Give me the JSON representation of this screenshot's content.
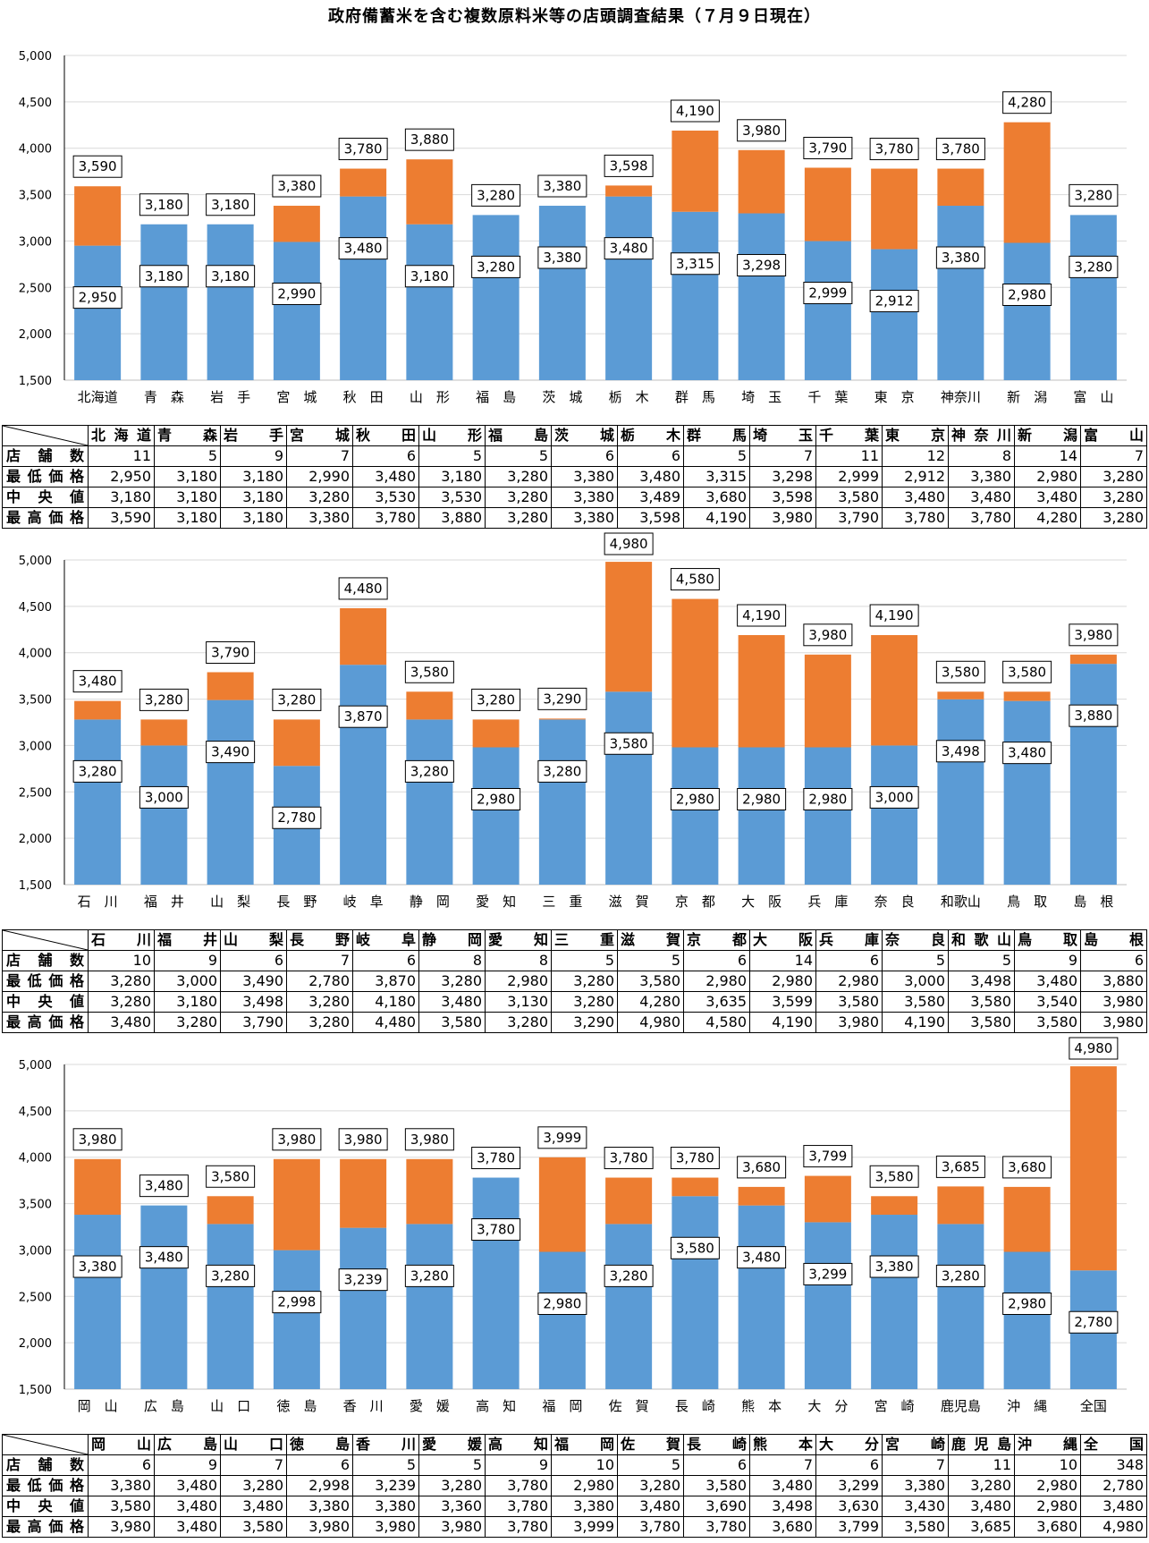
{
  "title": "政府備蓄米を含む複数原料米等の店頭調査結果（７月９日現在）",
  "colors": {
    "low": "#5b9bd5",
    "high": "#ed7d31",
    "grid": "#d9d9d9"
  },
  "table_row_labels": [
    "店舗数",
    "最低価格",
    "中央値",
    "最高価格"
  ],
  "chart_data": [
    {
      "type": "bar",
      "stacked": true,
      "ylim": [
        1500,
        5000
      ],
      "yticks": [
        "1,500",
        "2,000",
        "2,500",
        "3,000",
        "3,500",
        "4,000",
        "4,500",
        "5,000"
      ],
      "grid": true,
      "categories": [
        "北海道",
        "青　森",
        "岩　手",
        "宮　城",
        "秋　田",
        "山　形",
        "福　島",
        "茨　城",
        "栃　木",
        "群　馬",
        "埼　玉",
        "千　葉",
        "東　京",
        "神奈川",
        "新　潟",
        "富　山"
      ],
      "stores": [
        11,
        5,
        9,
        7,
        6,
        5,
        5,
        6,
        6,
        5,
        7,
        11,
        12,
        8,
        14,
        7
      ],
      "min": [
        2950,
        3180,
        3180,
        2990,
        3480,
        3180,
        3280,
        3380,
        3480,
        3315,
        3298,
        2999,
        2912,
        3380,
        2980,
        3280
      ],
      "median": [
        3180,
        3180,
        3180,
        3280,
        3530,
        3530,
        3280,
        3380,
        3489,
        3680,
        3598,
        3580,
        3480,
        3480,
        3480,
        3280
      ],
      "max": [
        3590,
        3180,
        3180,
        3380,
        3780,
        3880,
        3280,
        3380,
        3598,
        4190,
        3980,
        3790,
        3780,
        3780,
        4280,
        3280
      ]
    },
    {
      "type": "bar",
      "stacked": true,
      "ylim": [
        1500,
        5000
      ],
      "yticks": [
        "1,500",
        "2,000",
        "2,500",
        "3,000",
        "3,500",
        "4,000",
        "4,500",
        "5,000"
      ],
      "grid": true,
      "categories": [
        "石　川",
        "福　井",
        "山　梨",
        "長　野",
        "岐　阜",
        "静　岡",
        "愛　知",
        "三　重",
        "滋　賀",
        "京　都",
        "大　阪",
        "兵　庫",
        "奈　良",
        "和歌山",
        "鳥　取",
        "島　根"
      ],
      "stores": [
        10,
        9,
        6,
        7,
        6,
        8,
        8,
        5,
        5,
        6,
        14,
        6,
        5,
        5,
        9,
        6
      ],
      "min": [
        3280,
        3000,
        3490,
        2780,
        3870,
        3280,
        2980,
        3280,
        3580,
        2980,
        2980,
        2980,
        3000,
        3498,
        3480,
        3880
      ],
      "median": [
        3280,
        3180,
        3498,
        3280,
        4180,
        3480,
        3130,
        3280,
        4280,
        3635,
        3599,
        3580,
        3580,
        3580,
        3540,
        3980
      ],
      "max": [
        3480,
        3280,
        3790,
        3280,
        4480,
        3580,
        3280,
        3290,
        4980,
        4580,
        4190,
        3980,
        4190,
        3580,
        3580,
        3980
      ]
    },
    {
      "type": "bar",
      "stacked": true,
      "ylim": [
        1500,
        5000
      ],
      "yticks": [
        "1,500",
        "2,000",
        "2,500",
        "3,000",
        "3,500",
        "4,000",
        "4,500",
        "5,000"
      ],
      "grid": true,
      "categories": [
        "岡　山",
        "広　島",
        "山　口",
        "徳　島",
        "香　川",
        "愛　媛",
        "高　知",
        "福　岡",
        "佐　賀",
        "長　崎",
        "熊　本",
        "大　分",
        "宮　崎",
        "鹿児島",
        "沖　縄",
        "全国"
      ],
      "stores": [
        6,
        9,
        7,
        6,
        5,
        5,
        9,
        10,
        5,
        6,
        7,
        6,
        7,
        11,
        10,
        348
      ],
      "min": [
        3380,
        3480,
        3280,
        2998,
        3239,
        3280,
        3780,
        2980,
        3280,
        3580,
        3480,
        3299,
        3380,
        3280,
        2980,
        2780
      ],
      "median": [
        3580,
        3480,
        3480,
        3380,
        3380,
        3360,
        3780,
        3380,
        3480,
        3690,
        3498,
        3630,
        3430,
        3480,
        2980,
        3480
      ],
      "max": [
        3980,
        3480,
        3580,
        3980,
        3980,
        3980,
        3780,
        3999,
        3780,
        3780,
        3680,
        3799,
        3580,
        3685,
        3680,
        4980
      ]
    }
  ]
}
